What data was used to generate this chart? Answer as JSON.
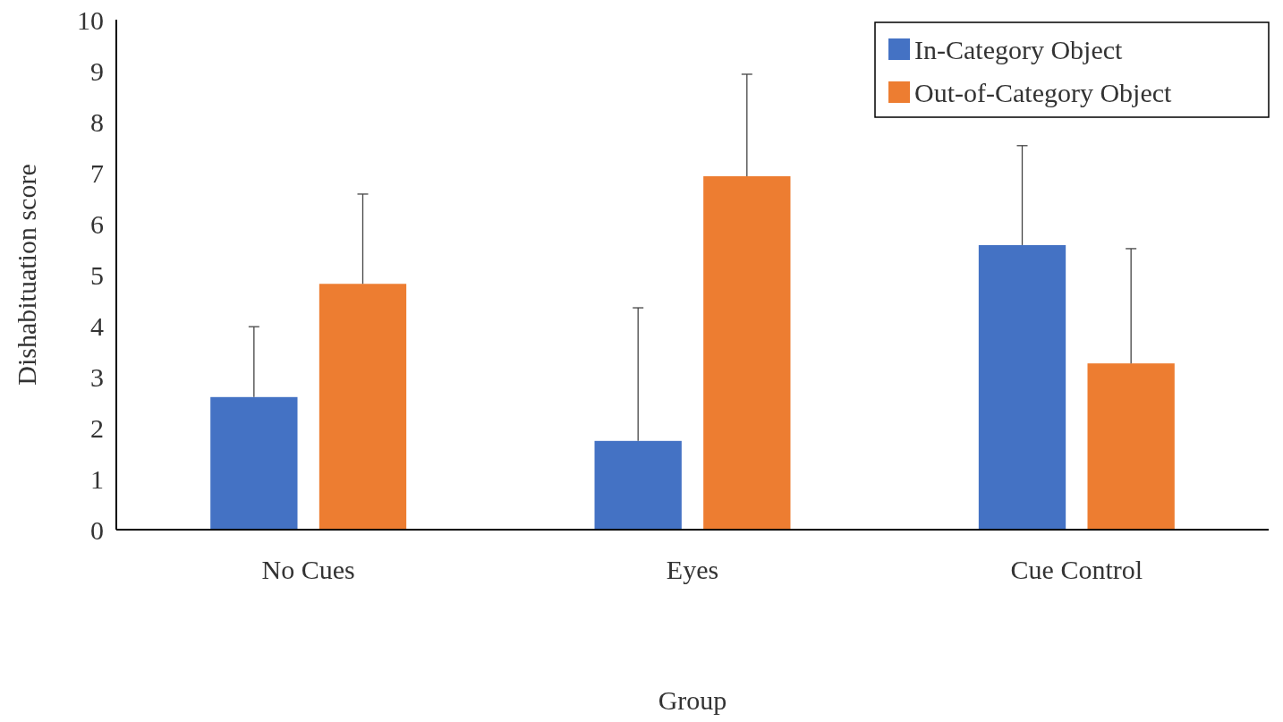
{
  "chart_data": {
    "type": "bar",
    "xlabel": "Group",
    "ylabel": "Dishabituation score",
    "categories": [
      "No Cues",
      "Eyes",
      "Cue Control"
    ],
    "series": [
      {
        "name": "In-Category Object",
        "color": "#4472c4",
        "values": [
          2.6,
          1.74,
          5.58
        ],
        "errors": [
          [
            2.6,
            3.98
          ],
          [
            1.74,
            4.35
          ],
          [
            5.58,
            7.53
          ]
        ]
      },
      {
        "name": "Out-of-Category Object",
        "color": "#ed7d31",
        "values": [
          4.82,
          6.93,
          3.26
        ],
        "errors": [
          [
            4.82,
            6.58
          ],
          [
            6.93,
            8.93
          ],
          [
            3.26,
            5.51
          ]
        ]
      }
    ],
    "ylim": [
      0,
      10
    ],
    "yticks": [
      0,
      1,
      2,
      3,
      4,
      5,
      6,
      7,
      8,
      9,
      10
    ],
    "legend": "top right"
  }
}
